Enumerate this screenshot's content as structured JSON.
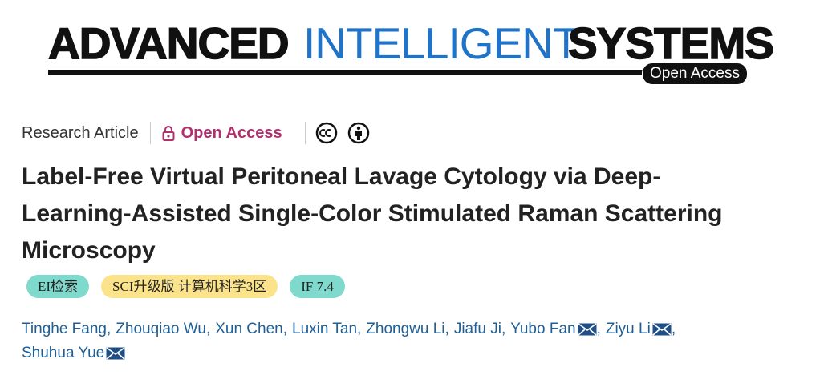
{
  "logo": {
    "word1": "ADVANCED",
    "word2": "INTELLIGENT",
    "word3": "SYSTEMS",
    "badge": "Open Access"
  },
  "meta": {
    "article_type": "Research Article",
    "access": "Open Access"
  },
  "title_lines": [
    "Label-Free Virtual Peritoneal Lavage Cytology via Deep-",
    "Learning-Assisted Single-Color Stimulated Raman Scattering",
    "Microscopy"
  ],
  "tags": [
    "EI检索",
    "SCI升级版 计算机科学3区",
    "IF 7.4"
  ],
  "authors": {
    "separator": ",",
    "list": [
      {
        "name": "Tinghe Fang",
        "corresponding": false
      },
      {
        "name": "Zhouqiao Wu",
        "corresponding": false
      },
      {
        "name": "Xun Chen",
        "corresponding": false
      },
      {
        "name": "Luxin Tan",
        "corresponding": false
      },
      {
        "name": "Zhongwu Li",
        "corresponding": false
      },
      {
        "name": "Jiafu Ji",
        "corresponding": false
      },
      {
        "name": "Yubo Fan",
        "corresponding": true
      },
      {
        "name": "Ziyu Li",
        "corresponding": true
      },
      {
        "name": "Shuhua Yue",
        "corresponding": true
      }
    ]
  }
}
